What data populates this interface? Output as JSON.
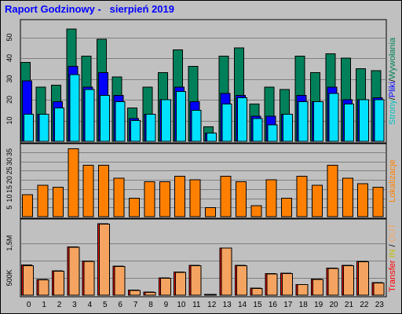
{
  "title": "Raport Godzinowy -   sierpień 2019",
  "colors": {
    "background": "#c0c0c0",
    "plot": "#c0c0c0",
    "grid": "#808080",
    "title": "#0000ff",
    "hits": "#00805a",
    "files": "#0000ff",
    "pages": "#00e0ff",
    "sites": "#ff8000",
    "kbytes": "#f4a460",
    "outline": "#000000"
  },
  "chart_data": [
    {
      "type": "bar",
      "panel": "top",
      "categories": [
        "0",
        "1",
        "2",
        "3",
        "4",
        "5",
        "6",
        "7",
        "8",
        "9",
        "10",
        "11",
        "12",
        "13",
        "14",
        "15",
        "16",
        "17",
        "18",
        "19",
        "20",
        "21",
        "22",
        "23"
      ],
      "ylim": [
        0,
        57
      ],
      "yticks": [
        "10",
        "20",
        "30",
        "40",
        "50"
      ],
      "ytick_values": [
        10,
        20,
        30,
        40,
        50
      ],
      "grid": true,
      "legend_label": {
        "parts": [
          "Strony",
          "/",
          "Pliki",
          "/",
          "Wywołania"
        ],
        "part_colors": [
          "#00c0c0",
          "#000000",
          "#0000ff",
          "#000000",
          "#00805a"
        ]
      },
      "series": [
        {
          "key": "hits",
          "values": [
            38,
            26,
            27,
            54,
            41,
            49,
            31,
            16,
            26,
            33,
            44,
            36,
            7,
            41,
            45,
            18,
            26,
            25,
            41,
            33,
            42,
            40,
            35,
            34
          ]
        },
        {
          "key": "files",
          "values": [
            29,
            13,
            19,
            36,
            26,
            33,
            22,
            11,
            13,
            20,
            26,
            19,
            4,
            23,
            22,
            12,
            12,
            13,
            22,
            19,
            26,
            20,
            20,
            21
          ]
        },
        {
          "key": "pages",
          "values": [
            13,
            13,
            16,
            32,
            25,
            22,
            19,
            10,
            13,
            20,
            24,
            15,
            4,
            18,
            21,
            11,
            8,
            13,
            19,
            19,
            23,
            18,
            20,
            20
          ]
        }
      ]
    },
    {
      "type": "bar",
      "panel": "middle",
      "categories": [
        "0",
        "1",
        "2",
        "3",
        "4",
        "5",
        "6",
        "7",
        "8",
        "9",
        "10",
        "11",
        "12",
        "13",
        "14",
        "15",
        "16",
        "17",
        "18",
        "19",
        "20",
        "21",
        "22",
        "23"
      ],
      "ylim": [
        0,
        38
      ],
      "yticks": [
        "5",
        "10",
        "15",
        "20",
        "25",
        "30",
        "35"
      ],
      "ytick_values": [
        5,
        10,
        15,
        20,
        25,
        30,
        35
      ],
      "grid": true,
      "legend_label": {
        "parts": [
          "Lokalizacje"
        ],
        "part_colors": [
          "#ff8000"
        ]
      },
      "series": [
        {
          "key": "sites",
          "values": [
            12,
            17,
            16,
            37,
            28,
            28,
            21,
            10,
            19,
            19,
            22,
            20,
            5,
            22,
            19,
            6,
            20,
            10,
            22,
            17,
            28,
            21,
            18,
            16
          ]
        }
      ]
    },
    {
      "type": "bar",
      "panel": "bottom",
      "categories": [
        "0",
        "1",
        "2",
        "3",
        "4",
        "5",
        "6",
        "7",
        "8",
        "9",
        "10",
        "11",
        "12",
        "13",
        "14",
        "15",
        "16",
        "17",
        "18",
        "19",
        "20",
        "21",
        "22",
        "23"
      ],
      "ylim": [
        0,
        2100
      ],
      "yticks": [
        "500K",
        "1,5M"
      ],
      "ytick_values": [
        500,
        1500
      ],
      "gridlines": [
        500,
        1000,
        1500
      ],
      "grid": true,
      "legend_label": {
        "parts": [
          "Transfer",
          " ",
          "IN",
          " / ",
          "OUT"
        ],
        "part_colors": [
          "#ff0000",
          "#000000",
          "#c0c000",
          "#000000",
          "#f4a460"
        ]
      },
      "series": [
        {
          "key": "transfer_in",
          "values": [
            870,
            450,
            700,
            1390,
            980,
            2060,
            830,
            150,
            90,
            500,
            670,
            860,
            25,
            1360,
            860,
            200,
            620,
            630,
            310,
            460,
            780,
            860,
            970,
            360
          ]
        },
        {
          "key": "transfer_out",
          "values": [
            850,
            440,
            690,
            1380,
            970,
            2040,
            820,
            140,
            80,
            490,
            660,
            850,
            20,
            1350,
            850,
            190,
            610,
            620,
            300,
            450,
            770,
            850,
            960,
            350
          ]
        }
      ]
    }
  ]
}
